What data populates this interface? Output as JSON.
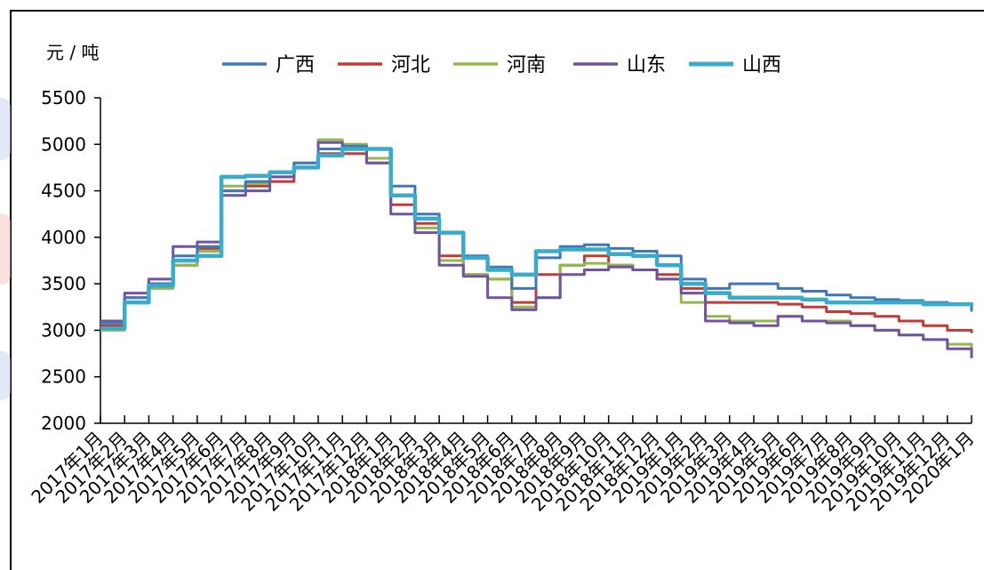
{
  "colors": {
    "广西": "#3f78b7",
    "河北": "#c23b37",
    "河南": "#91b84b",
    "山东": "#7153a0",
    "山西": "#3aabc9"
  },
  "chart_data": {
    "type": "line",
    "title": "",
    "ylabel": "元 / 吨",
    "xlabel": "",
    "ylim": [
      2000,
      5500
    ],
    "yticks": [
      2000,
      2500,
      3000,
      3500,
      4000,
      4500,
      5000,
      5500
    ],
    "grid": false,
    "legend_position": "top",
    "categories": [
      "2017年1月",
      "2017年2月",
      "2017年3月",
      "2017年4月",
      "2017年5月",
      "2017年6月",
      "2017年7月",
      "2017年8月",
      "2017年9月",
      "2017年10月",
      "2017年11月",
      "2017年12月",
      "2018年1月",
      "2018年2月",
      "2018年3月",
      "2018年4月",
      "2018年5月",
      "2018年6月",
      "2018年7月",
      "2018年8月",
      "2018年9月",
      "2018年10月",
      "2018年11月",
      "2018年12月",
      "2019年1月",
      "2019年2月",
      "2019年3月",
      "2019年4月",
      "2019年5月",
      "2019年6月",
      "2019年7月",
      "2019年8月",
      "2019年9月",
      "2019年10月",
      "2019年11月",
      "2019年12月",
      "2020年1月"
    ],
    "series": [
      {
        "name": "广西",
        "values": [
          3080,
          3350,
          3500,
          3800,
          3900,
          4500,
          4600,
          4700,
          4800,
          4950,
          4980,
          4950,
          4550,
          4250,
          4050,
          3800,
          3680,
          3450,
          3780,
          3900,
          3920,
          3880,
          3850,
          3800,
          3550,
          3450,
          3500,
          3500,
          3450,
          3420,
          3380,
          3350,
          3330,
          3320,
          3300,
          3280,
          3200
        ]
      },
      {
        "name": "河北",
        "values": [
          3050,
          3350,
          3500,
          3700,
          3880,
          4500,
          4550,
          4600,
          4750,
          4900,
          4900,
          4800,
          4350,
          4150,
          3800,
          3600,
          3550,
          3300,
          3600,
          3700,
          3800,
          3700,
          3650,
          3600,
          3450,
          3300,
          3300,
          3300,
          3280,
          3250,
          3200,
          3180,
          3150,
          3100,
          3050,
          3000,
          2970
        ]
      },
      {
        "name": "河南",
        "values": [
          3000,
          3300,
          3450,
          3700,
          3850,
          4550,
          4580,
          4650,
          4800,
          5050,
          5000,
          4850,
          4450,
          4100,
          3750,
          3600,
          3550,
          3250,
          3350,
          3700,
          3720,
          3700,
          3650,
          3550,
          3300,
          3150,
          3100,
          3100,
          3150,
          3100,
          3100,
          3050,
          3000,
          2950,
          2900,
          2850,
          2800
        ]
      },
      {
        "name": "山东",
        "values": [
          3100,
          3400,
          3550,
          3900,
          3950,
          4450,
          4500,
          4650,
          4750,
          5020,
          4950,
          4800,
          4250,
          4050,
          3700,
          3580,
          3350,
          3220,
          3350,
          3600,
          3650,
          3680,
          3650,
          3550,
          3400,
          3100,
          3080,
          3050,
          3150,
          3100,
          3080,
          3050,
          3000,
          2950,
          2900,
          2800,
          2700
        ]
      },
      {
        "name": "山西",
        "values": [
          3020,
          3300,
          3480,
          3750,
          3800,
          4650,
          4660,
          4700,
          4750,
          4880,
          4950,
          4950,
          4450,
          4200,
          4050,
          3780,
          3650,
          3600,
          3850,
          3870,
          3870,
          3820,
          3800,
          3700,
          3500,
          3400,
          3350,
          3350,
          3350,
          3330,
          3300,
          3300,
          3300,
          3300,
          3280,
          3280,
          3270
        ]
      }
    ]
  }
}
